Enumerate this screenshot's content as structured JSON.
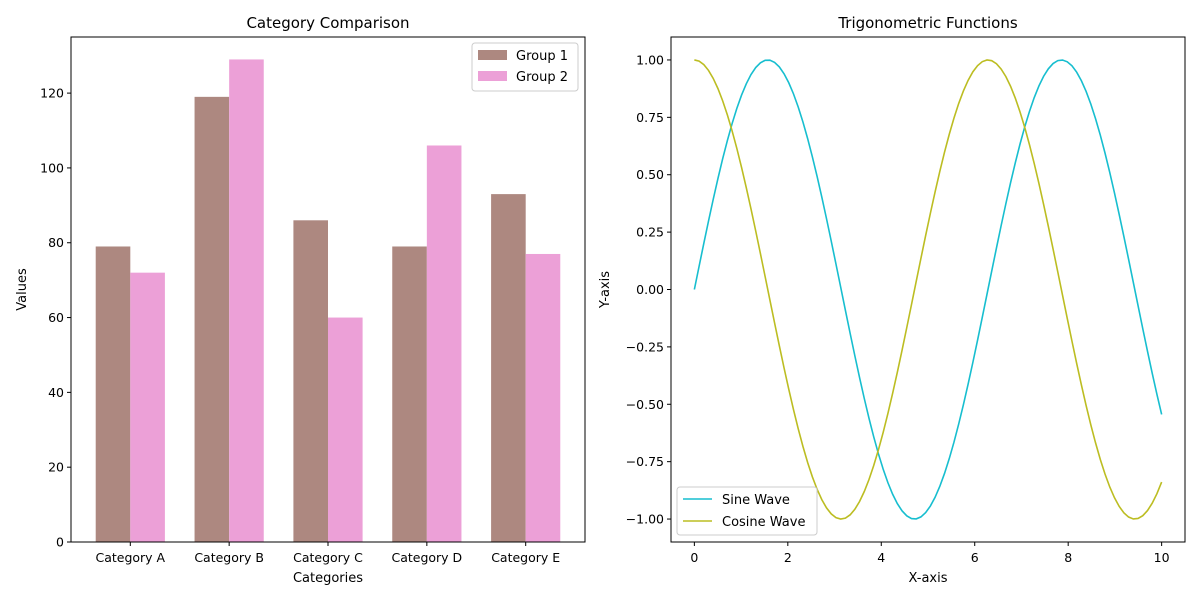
{
  "chart_data": [
    {
      "type": "bar",
      "title": "Category Comparison",
      "xlabel": "Categories",
      "ylabel": "Values",
      "categories": [
        "Category A",
        "Category B",
        "Category C",
        "Category D",
        "Category E"
      ],
      "series": [
        {
          "name": "Group 1",
          "color": "#ad8880",
          "values": [
            79,
            119,
            86,
            79,
            93
          ]
        },
        {
          "name": "Group 2",
          "color": "#eca0d7",
          "values": [
            72,
            129,
            60,
            106,
            77
          ]
        }
      ],
      "ylim": [
        0,
        135
      ],
      "yticks": [
        0,
        20,
        40,
        60,
        80,
        100,
        120
      ],
      "grid": false,
      "legend_position": "top-right"
    },
    {
      "type": "line",
      "title": "Trigonometric Functions",
      "xlabel": "X-axis",
      "ylabel": "Y-axis",
      "xlim": [
        -0.5,
        10.5
      ],
      "ylim": [
        -1.1,
        1.1
      ],
      "xticks": [
        0,
        2,
        4,
        6,
        8,
        10
      ],
      "yticks": [
        -1.0,
        -0.75,
        -0.5,
        -0.25,
        0.0,
        0.25,
        0.5,
        0.75,
        1.0
      ],
      "series": [
        {
          "name": "Sine Wave",
          "color": "#17becf",
          "function": "sin",
          "x_range": [
            0,
            10
          ]
        },
        {
          "name": "Cosine Wave",
          "color": "#bcbd22",
          "function": "cos",
          "x_range": [
            0,
            10
          ]
        }
      ],
      "grid": false,
      "legend_position": "lower-left"
    }
  ]
}
